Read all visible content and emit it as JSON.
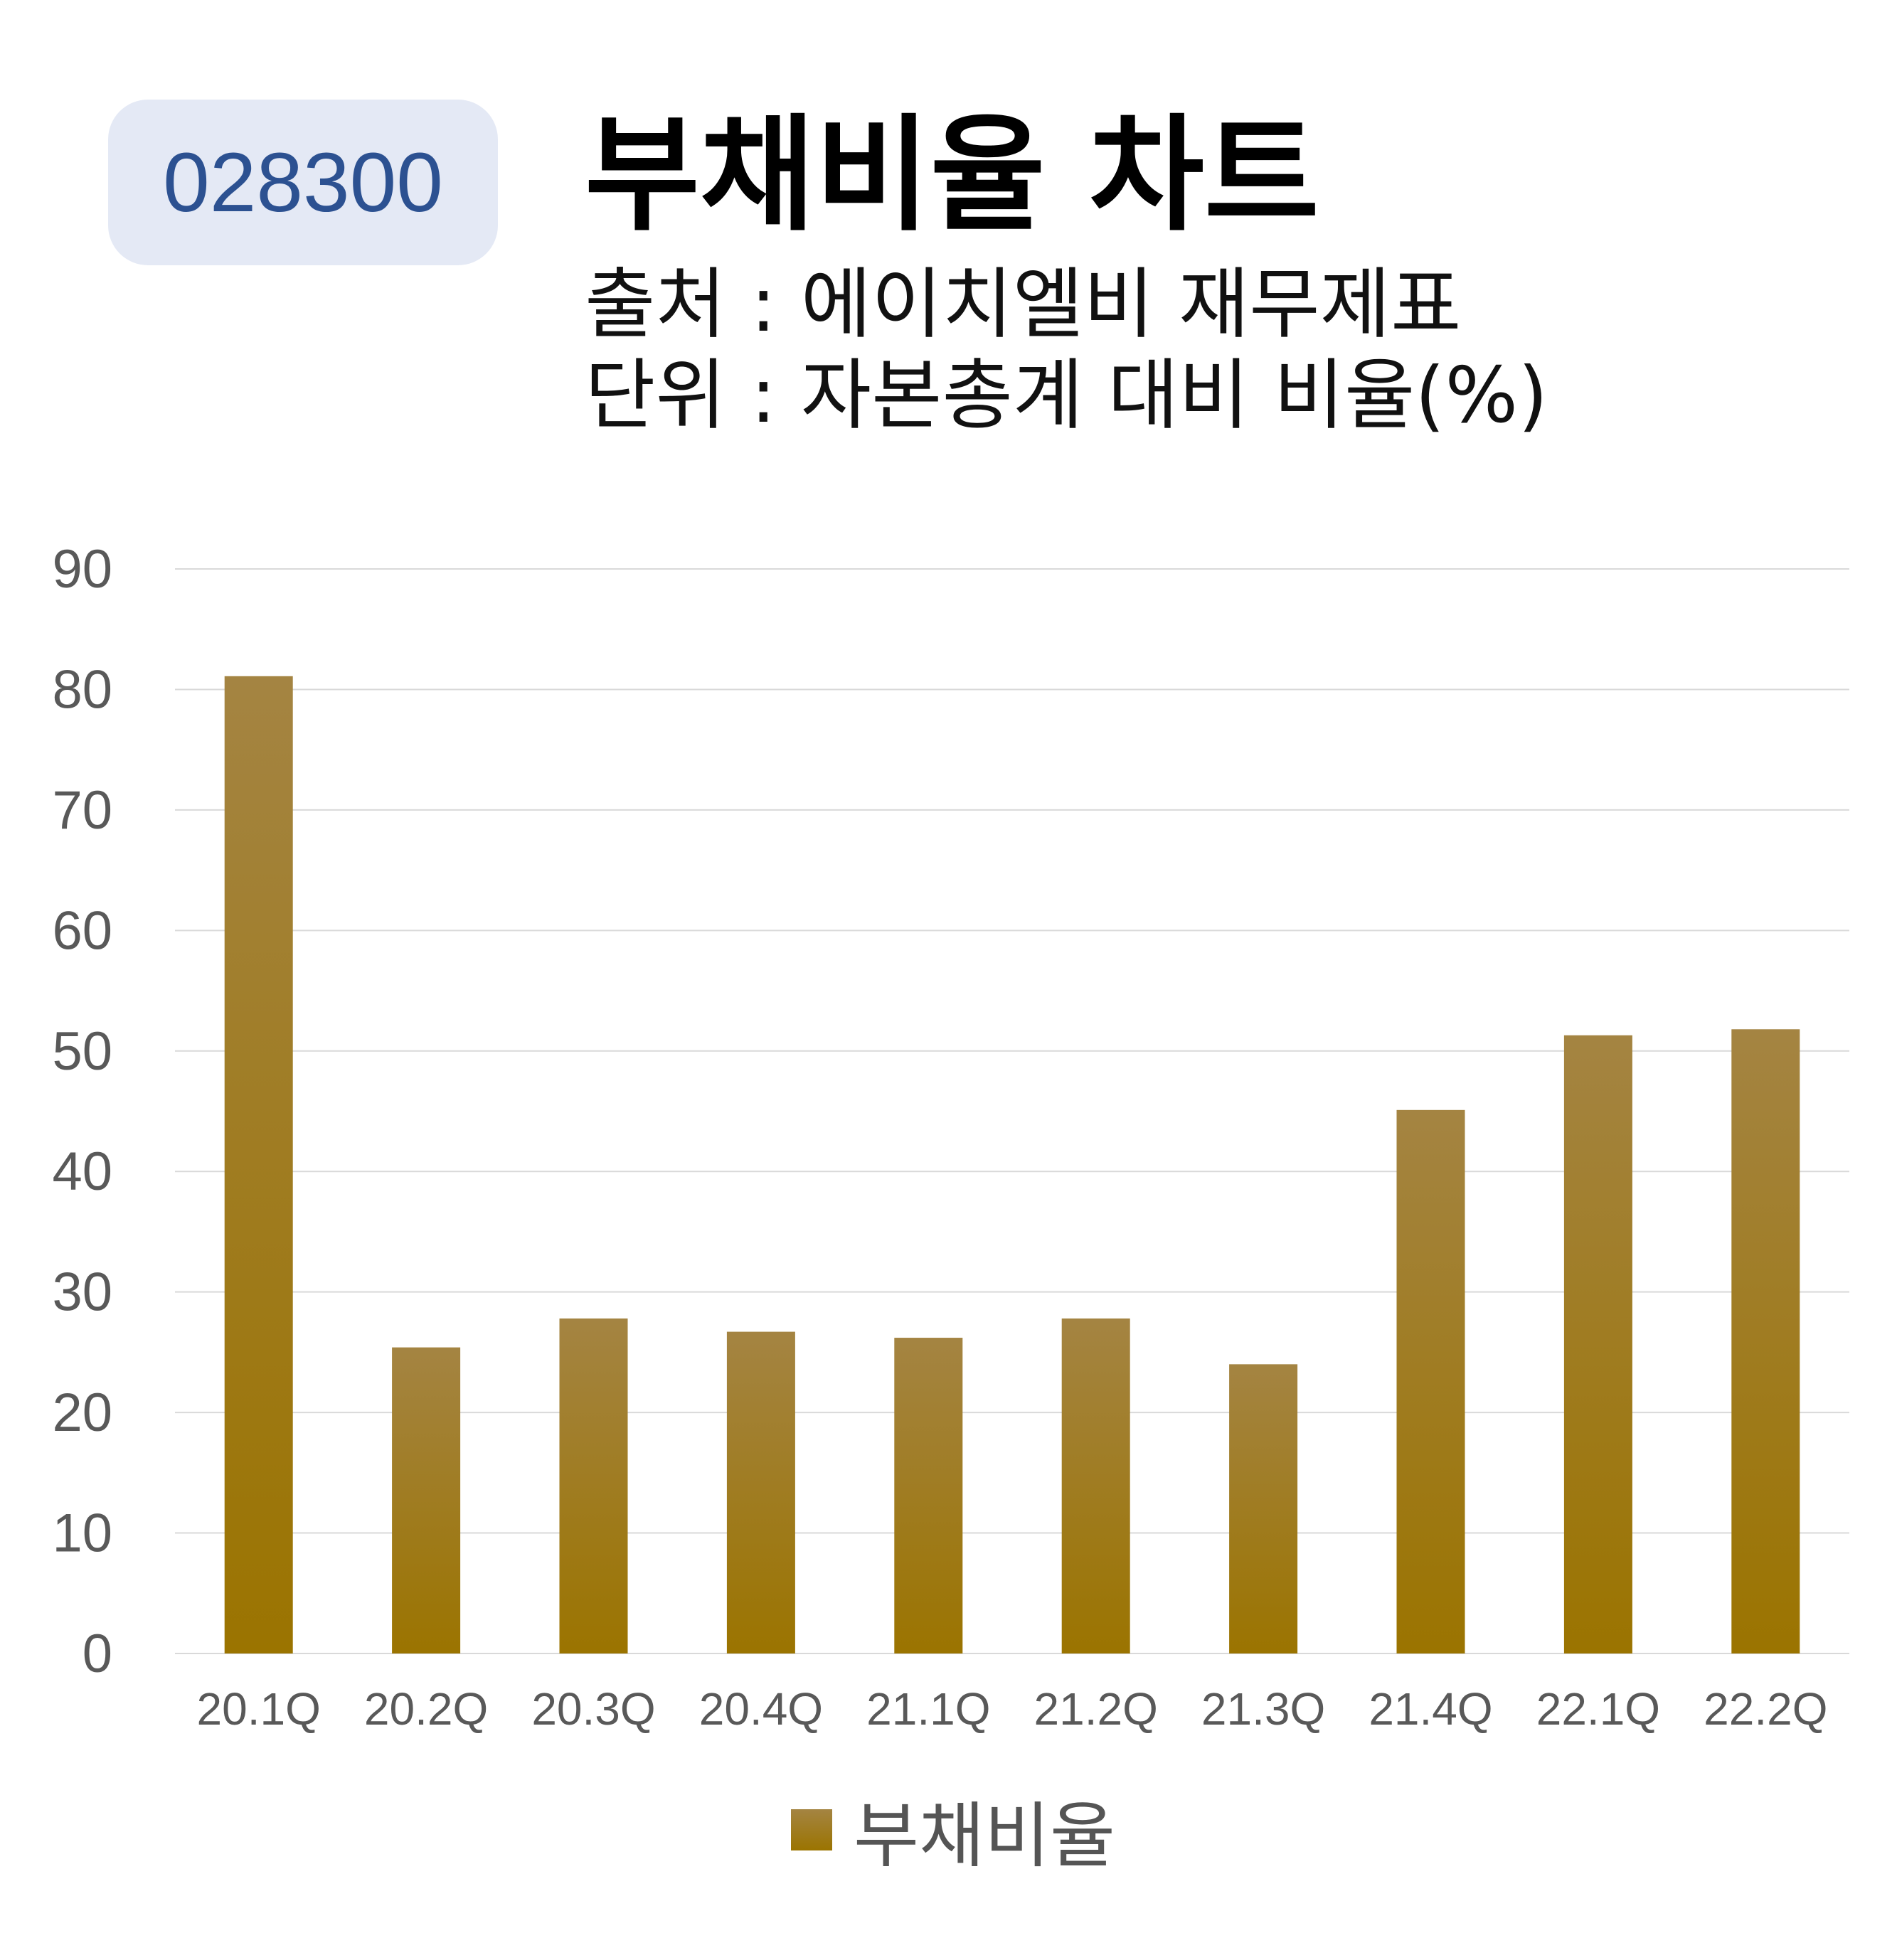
{
  "header": {
    "code": "028300",
    "title": "부채비율 차트",
    "source": "출처 : 에이치엘비 재무제표",
    "unit": "단위 : 자본총계 대비 비율(%)"
  },
  "colors": {
    "bar_top": "#a48442",
    "bar_bottom": "#9b7400",
    "badge_bg": "#e4e9f5",
    "badge_text": "#2c5191",
    "grid": "#d9d9d9",
    "tick_text": "#595959"
  },
  "chart_data": {
    "type": "bar",
    "categories": [
      "20.1Q",
      "20.2Q",
      "20.3Q",
      "20.4Q",
      "21.1Q",
      "21.2Q",
      "21.3Q",
      "21.4Q",
      "22.1Q",
      "22.2Q"
    ],
    "series": [
      {
        "name": "부채비율",
        "values": [
          81.1,
          25.4,
          27.8,
          26.7,
          26.2,
          27.8,
          24.0,
          45.1,
          51.3,
          51.8
        ]
      }
    ],
    "yticks": [
      0,
      10,
      20,
      30,
      40,
      50,
      60,
      70,
      80,
      90
    ],
    "ylim": [
      0,
      90
    ],
    "grid": true,
    "legend_position": "bottom"
  }
}
